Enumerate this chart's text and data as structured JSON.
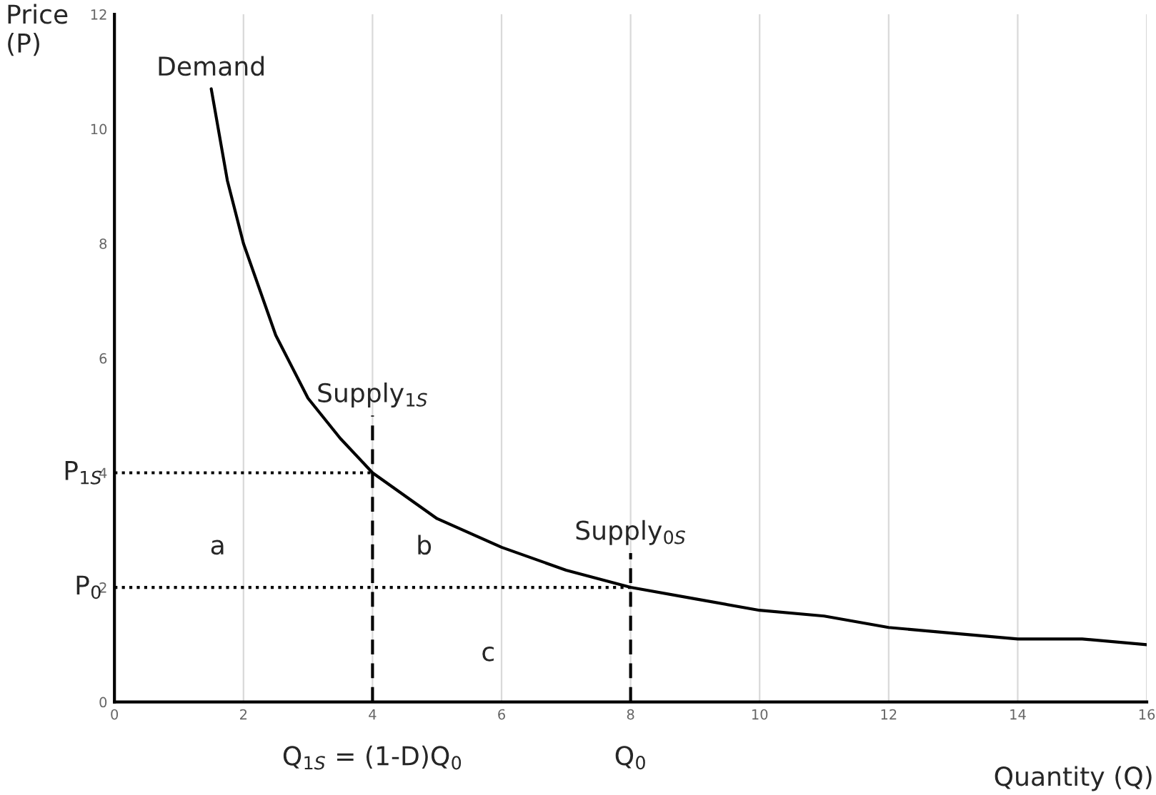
{
  "chart_data": {
    "type": "line",
    "xlabel": "Quantity (Q)",
    "ylabel": "Price\n(P)",
    "xlim": [
      0,
      16
    ],
    "xticks": [
      0,
      2,
      4,
      6,
      8,
      10,
      12,
      14,
      16
    ],
    "ylim": [
      0,
      12
    ],
    "yticks": [
      0,
      2,
      4,
      6,
      8,
      10,
      12
    ],
    "grid": "x",
    "marker": "none",
    "series": [
      {
        "name": "Demand",
        "color": "#000000",
        "line_style": "solid",
        "x": [
          1.5,
          1.75,
          2,
          2.5,
          3,
          3.5,
          4,
          5,
          6,
          7,
          8,
          9,
          10,
          11,
          12,
          13,
          14,
          15,
          16
        ],
        "values": [
          10.7,
          9.1,
          8,
          6.4,
          5.3,
          4.6,
          4,
          3.2,
          2.7,
          2.3,
          2,
          1.8,
          1.6,
          1.5,
          1.3,
          1.2,
          1.1,
          1.1,
          1.0
        ]
      },
      {
        "name": "Supply$_{1S}$",
        "color": "#000000",
        "line_style": "dashed",
        "x": [
          4,
          4
        ],
        "values": [
          0,
          5.0
        ]
      },
      {
        "name": "Supply$_{0S}$",
        "color": "#000000",
        "line_style": "dashed",
        "x": [
          8,
          8
        ],
        "values": [
          0,
          2.6
        ]
      },
      {
        "color": "#000000",
        "line_style": "dotted",
        "x": [
          0,
          4
        ],
        "values": [
          4,
          4
        ]
      },
      {
        "color": "#000000",
        "line_style": "dotted",
        "x": [
          0,
          8
        ],
        "values": [
          2,
          2
        ]
      }
    ],
    "annotations": [
      {
        "text": "P$_{1S}$",
        "x": 0,
        "y": 4
      },
      {
        "text": "P$_{0}$",
        "x": 0,
        "y": 2
      },
      {
        "text": "Q$_{1S}$ = (1-D)Q$_{0}$",
        "x": 4,
        "y": 0
      },
      {
        "text": "Q$_{0}$",
        "x": 8,
        "y": 0
      },
      "a",
      "b",
      "c"
    ]
  }
}
